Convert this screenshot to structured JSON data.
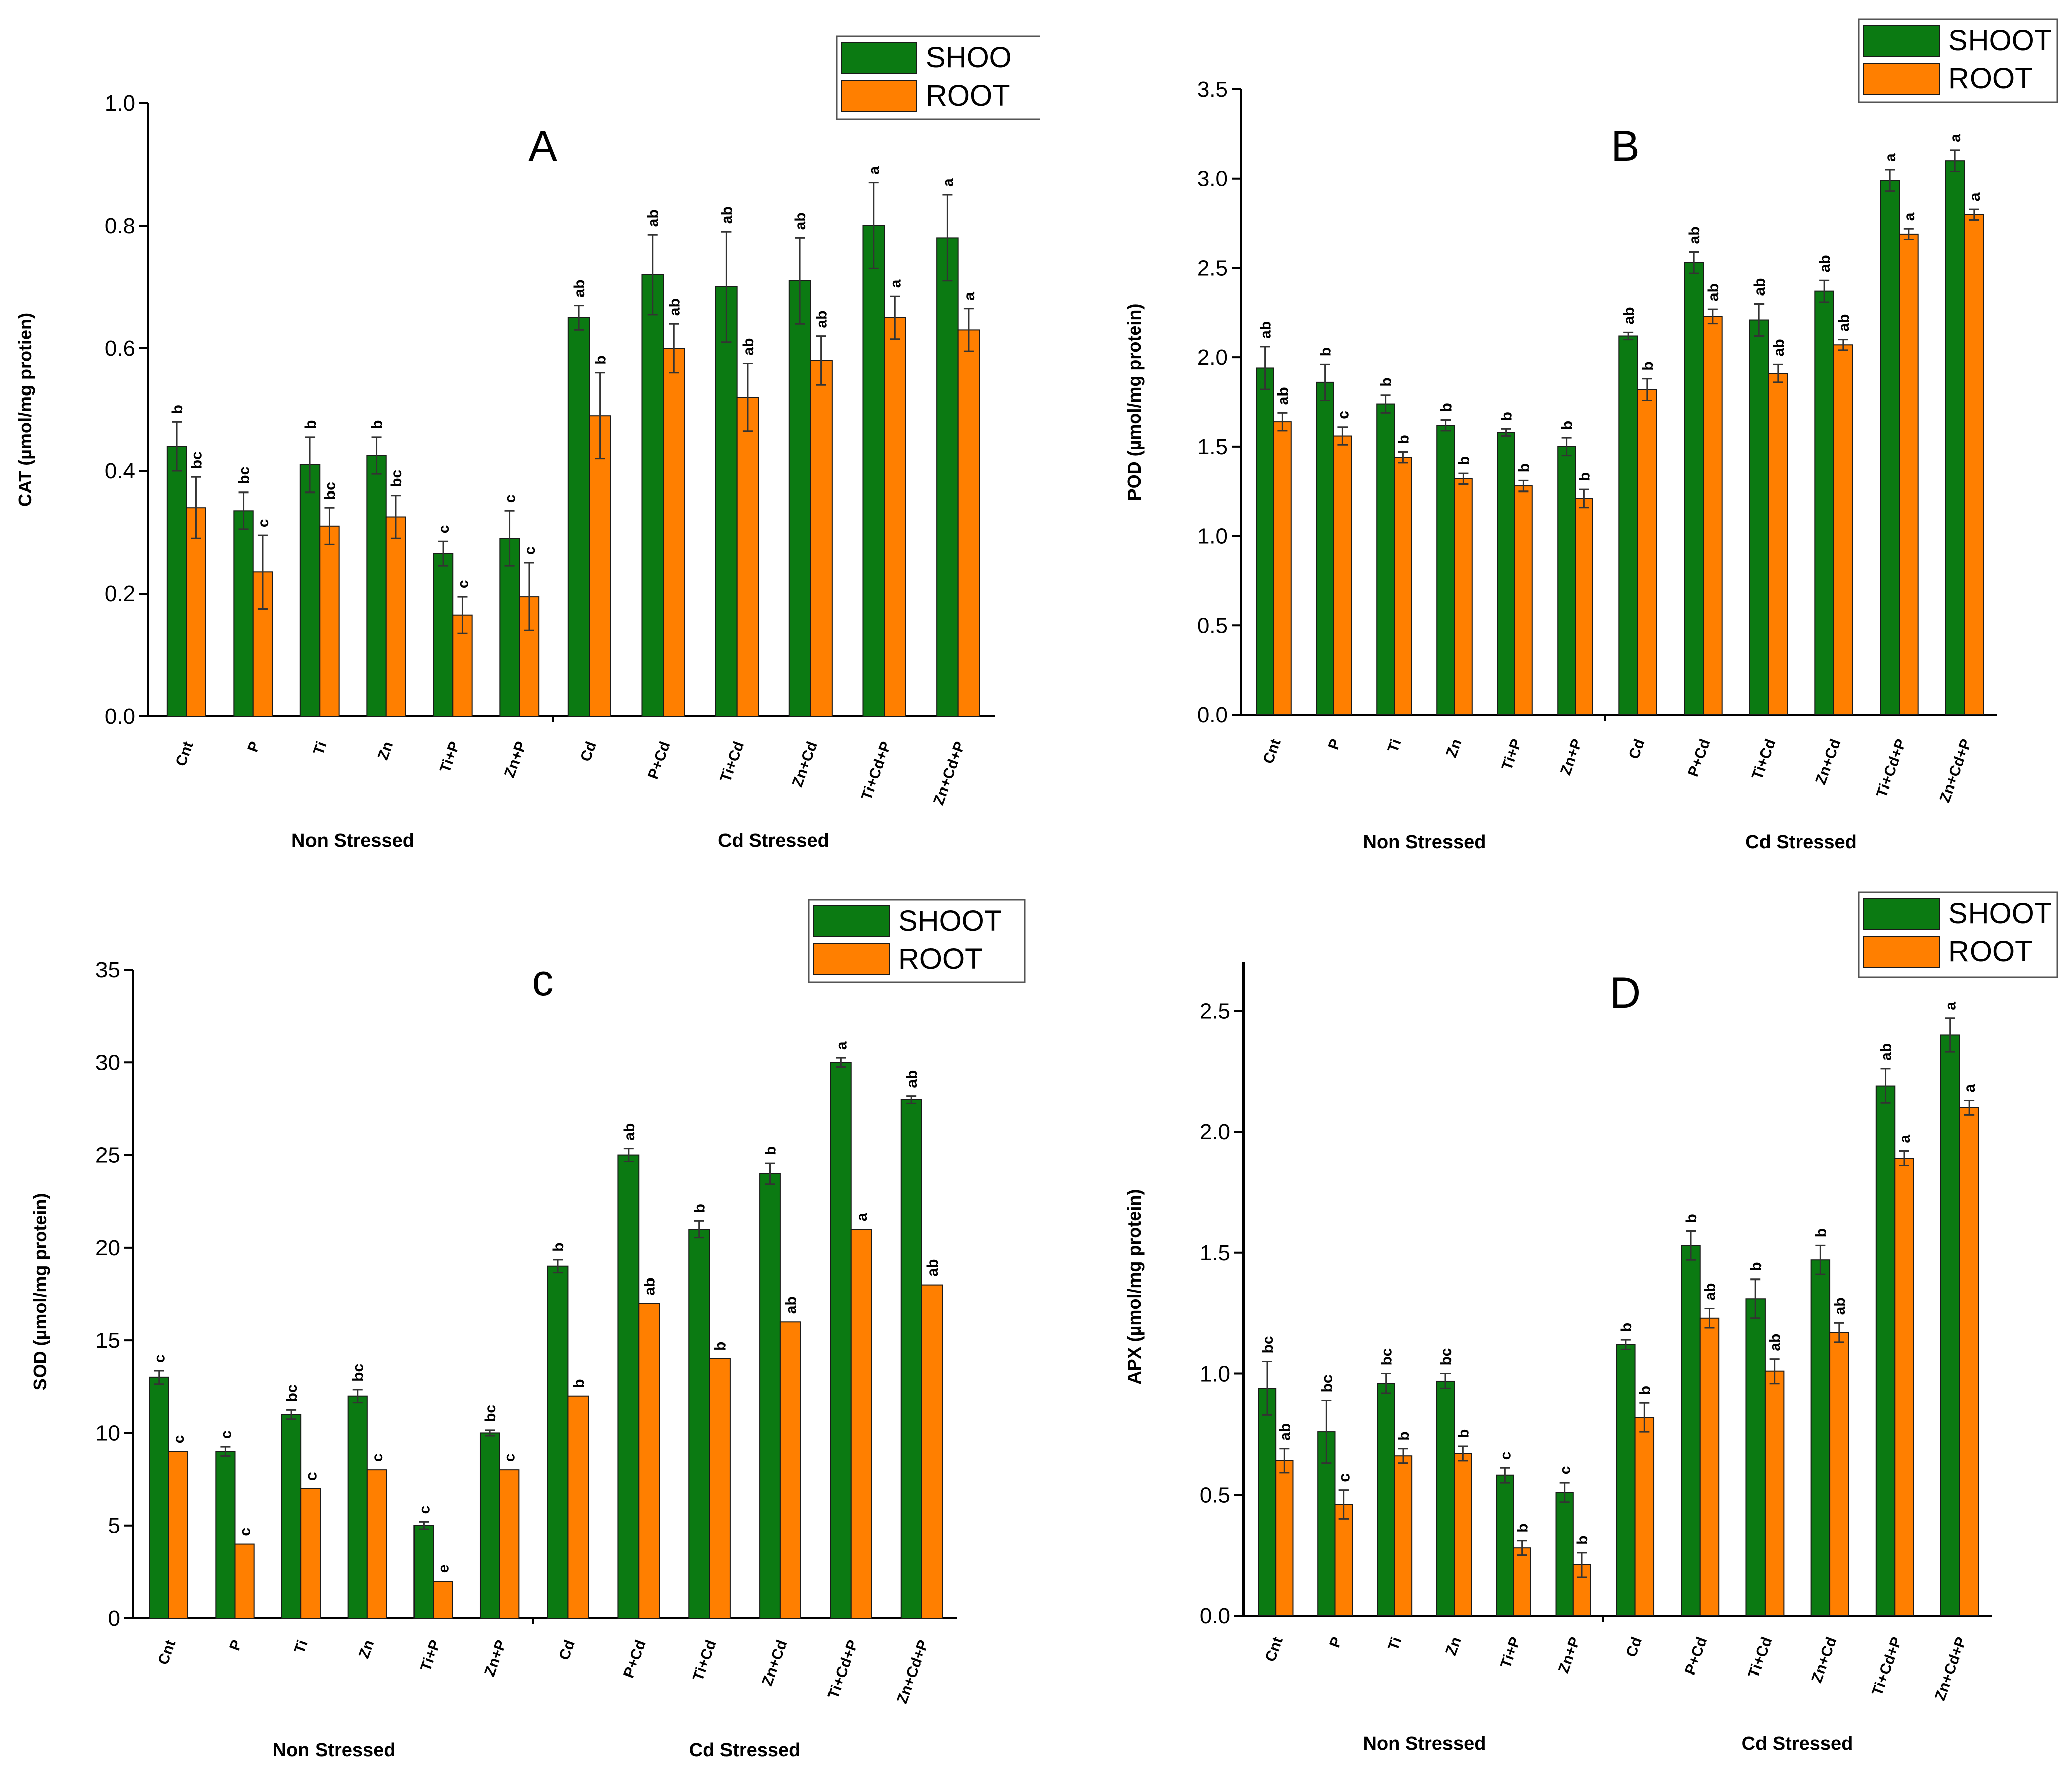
{
  "colors": {
    "shoot": "#0b7a12",
    "root": "#ff7f00",
    "axis": "#000000",
    "error": "#333333"
  },
  "legend": {
    "shoot": "SHOOT",
    "root": "ROOT"
  },
  "panel_A_legend_shoot": "SHOO",
  "chart_data": [
    {
      "id": "A",
      "type": "bar",
      "panel_label": "A",
      "ylabel": "CAT (µmol/mg protien)",
      "ylim": [
        0,
        1.0
      ],
      "yticks": [
        "0.0",
        "0.2",
        "0.4",
        "0.6",
        "0.8",
        "1.0"
      ],
      "group_labels": [
        "Non Stressed",
        "Cd Stressed"
      ],
      "categories": [
        "Cnt",
        "P",
        "Ti",
        "Zn",
        "Ti+P",
        "Zn+P",
        "Cd",
        "P+Cd",
        "Ti+Cd",
        "Zn+Cd",
        "Ti+Cd+P",
        "Zn+Cd+P"
      ],
      "series": [
        {
          "name": "SHOOT",
          "values": [
            0.44,
            0.335,
            0.41,
            0.425,
            0.265,
            0.29,
            0.65,
            0.72,
            0.7,
            0.71,
            0.8,
            0.78
          ],
          "errors": [
            0.04,
            0.03,
            0.045,
            0.03,
            0.02,
            0.045,
            0.02,
            0.065,
            0.09,
            0.07,
            0.07,
            0.07
          ],
          "labels": [
            "b",
            "bc",
            "b",
            "b",
            "c",
            "c",
            "ab",
            "ab",
            "ab",
            "ab",
            "a",
            "a"
          ]
        },
        {
          "name": "ROOT",
          "values": [
            0.34,
            0.235,
            0.31,
            0.325,
            0.165,
            0.195,
            0.49,
            0.6,
            0.52,
            0.58,
            0.65,
            0.63
          ],
          "errors": [
            0.05,
            0.06,
            0.03,
            0.035,
            0.03,
            0.055,
            0.07,
            0.04,
            0.055,
            0.04,
            0.035,
            0.035
          ],
          "labels": [
            "bc",
            "c",
            "bc",
            "bc",
            "c",
            "c",
            "b",
            "ab",
            "ab",
            "ab",
            "a",
            "a"
          ]
        }
      ]
    },
    {
      "id": "B",
      "type": "bar",
      "panel_label": "B",
      "ylabel": "POD (µmol/mg protein)",
      "ylim": [
        0,
        3.5
      ],
      "yticks": [
        "0.0",
        "0.5",
        "1.0",
        "1.5",
        "2.0",
        "2.5",
        "3.0",
        "3.5"
      ],
      "group_labels": [
        "Non Stressed",
        "Cd Stressed"
      ],
      "categories": [
        "Cnt",
        "P",
        "Ti",
        "Zn",
        "Ti+P",
        "Zn+P",
        "Cd",
        "P+Cd",
        "Ti+Cd",
        "Zn+Cd",
        "Ti+Cd+P",
        "Zn+Cd+P"
      ],
      "series": [
        {
          "name": "SHOOT",
          "values": [
            1.94,
            1.86,
            1.74,
            1.62,
            1.58,
            1.5,
            2.12,
            2.53,
            2.21,
            2.37,
            2.99,
            3.1
          ],
          "errors": [
            0.12,
            0.1,
            0.05,
            0.03,
            0.02,
            0.05,
            0.02,
            0.06,
            0.09,
            0.06,
            0.06,
            0.06
          ],
          "labels": [
            "ab",
            "b",
            "b",
            "b",
            "b",
            "b",
            "ab",
            "ab",
            "ab",
            "ab",
            "a",
            "a"
          ]
        },
        {
          "name": "ROOT",
          "values": [
            1.64,
            1.56,
            1.44,
            1.32,
            1.28,
            1.21,
            1.82,
            2.23,
            1.91,
            2.07,
            2.69,
            2.8
          ],
          "errors": [
            0.05,
            0.05,
            0.03,
            0.03,
            0.03,
            0.05,
            0.06,
            0.04,
            0.05,
            0.03,
            0.03,
            0.03
          ],
          "labels": [
            "ab",
            "c",
            "b",
            "b",
            "b",
            "b",
            "b",
            "ab",
            "ab",
            "ab",
            "a",
            "a"
          ]
        }
      ]
    },
    {
      "id": "C",
      "type": "bar",
      "panel_label": "c",
      "ylabel": "SOD (µmol/mg protein)",
      "ylim": [
        0,
        35
      ],
      "yticks": [
        "0",
        "5",
        "10",
        "15",
        "20",
        "25",
        "30",
        "35"
      ],
      "group_labels": [
        "Non Stressed",
        "Cd Stressed"
      ],
      "categories": [
        "Cnt",
        "P",
        "Ti",
        "Zn",
        "Ti+P",
        "Zn+P",
        "Cd",
        "P+Cd",
        "Ti+Cd",
        "Zn+Cd",
        "Ti+Cd+P",
        "Zn+Cd+P"
      ],
      "series": [
        {
          "name": "SHOOT",
          "values": [
            13,
            9,
            11,
            12,
            5,
            10,
            19,
            25,
            21,
            24,
            30,
            28
          ],
          "errors": [
            0.35,
            0.25,
            0.25,
            0.35,
            0.2,
            0.15,
            0.35,
            0.35,
            0.45,
            0.55,
            0.25,
            0.2
          ],
          "labels": [
            "c",
            "c",
            "bc",
            "bc",
            "c",
            "bc",
            "b",
            "ab",
            "b",
            "b",
            "a",
            "ab"
          ]
        },
        {
          "name": "ROOT",
          "values": [
            9,
            4,
            7,
            8,
            2,
            8,
            12,
            17,
            14,
            16,
            21,
            18
          ],
          "errors": [
            0,
            0,
            0,
            0,
            0,
            0,
            0,
            0,
            0,
            0,
            0,
            0
          ],
          "labels": [
            "c",
            "c",
            "c",
            "c",
            "e",
            "c",
            "b",
            "ab",
            "b",
            "ab",
            "a",
            "ab"
          ]
        }
      ]
    },
    {
      "id": "D",
      "type": "bar",
      "panel_label": "D",
      "ylabel": "APX (µmol/mg protein)",
      "ylim": [
        0,
        2.7
      ],
      "yticks": [
        "0.0",
        "0.5",
        "1.0",
        "1.5",
        "2.0",
        "2.5"
      ],
      "group_labels": [
        "Non Stressed",
        "Cd Stressed"
      ],
      "categories": [
        "Cnt",
        "P",
        "Ti",
        "Zn",
        "Ti+P",
        "Zn+P",
        "Cd",
        "P+Cd",
        "Ti+Cd",
        "Zn+Cd",
        "Ti+Cd+P",
        "Zn+Cd+P"
      ],
      "series": [
        {
          "name": "SHOOT",
          "values": [
            0.94,
            0.76,
            0.96,
            0.97,
            0.58,
            0.51,
            1.12,
            1.53,
            1.31,
            1.47,
            2.19,
            2.4
          ],
          "errors": [
            0.11,
            0.13,
            0.04,
            0.03,
            0.03,
            0.04,
            0.02,
            0.06,
            0.08,
            0.06,
            0.07,
            0.07
          ],
          "labels": [
            "bc",
            "bc",
            "bc",
            "bc",
            "c",
            "c",
            "b",
            "b",
            "b",
            "b",
            "ab",
            "a"
          ]
        },
        {
          "name": "ROOT",
          "values": [
            0.64,
            0.46,
            0.66,
            0.67,
            0.28,
            0.21,
            0.82,
            1.23,
            1.01,
            1.17,
            1.89,
            2.1
          ],
          "errors": [
            0.05,
            0.06,
            0.03,
            0.03,
            0.03,
            0.05,
            0.06,
            0.04,
            0.05,
            0.04,
            0.03,
            0.03
          ],
          "labels": [
            "ab",
            "c",
            "b",
            "b",
            "b",
            "b",
            "b",
            "ab",
            "ab",
            "ab",
            "a",
            "a"
          ]
        }
      ]
    }
  ]
}
